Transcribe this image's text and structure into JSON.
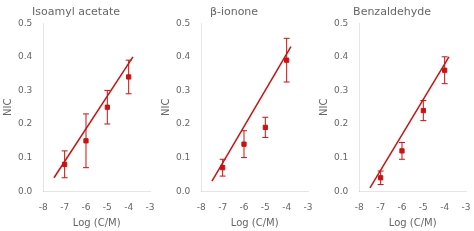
{
  "chart_data": [
    {
      "type": "scatter",
      "title": "Isoamyl acetate",
      "xlabel": "Log (C/M)",
      "ylabel": "NIC",
      "series": [
        {
          "type": "scatter",
          "marker": "square",
          "color": "#cc1111",
          "x": [
            -7,
            -6,
            -5,
            -4
          ],
          "values": [
            0.08,
            0.15,
            0.25,
            0.34
          ],
          "yerr": [
            0.04,
            0.08,
            0.05,
            0.05
          ]
        },
        {
          "type": "line",
          "color": "#cc1111",
          "x": [
            -7.5,
            -3.8
          ],
          "values": [
            0.04,
            0.4
          ]
        }
      ],
      "xlim": [
        -8,
        -3
      ],
      "ylim": [
        0.0,
        0.5
      ],
      "xticks": [
        -8,
        -7,
        -6,
        -5,
        -4,
        -3
      ],
      "yticks": [
        {
          "value": 0.0,
          "label": "0.0"
        },
        0.1,
        0.2,
        0.3,
        0.4,
        0.5
      ],
      "grid": false
    },
    {
      "type": "scatter",
      "title": "β-ionone",
      "xlabel": "Log (C/M)",
      "ylabel": "NIC",
      "series": [
        {
          "type": "scatter",
          "marker": "square",
          "color": "#cc1111",
          "x": [
            -7,
            -6,
            -5,
            -4
          ],
          "values": [
            0.07,
            0.14,
            0.19,
            0.39
          ],
          "yerr": [
            0.025,
            0.04,
            0.03,
            0.065
          ]
        },
        {
          "type": "line",
          "color": "#cc1111",
          "x": [
            -7.5,
            -3.8
          ],
          "values": [
            0.03,
            0.43
          ]
        }
      ],
      "xlim": [
        -8,
        -3
      ],
      "ylim": [
        0.0,
        0.5
      ],
      "xticks": [
        -8,
        -7,
        -6,
        -5,
        -4,
        -3
      ],
      "yticks": [
        {
          "value": 0.0,
          "label": "0.0"
        },
        0.1,
        0.2,
        0.3,
        0.4,
        0.5
      ],
      "grid": false
    },
    {
      "type": "scatter",
      "title": "Benzaldehyde",
      "xlabel": "Log (C/M)",
      "ylabel": "NIC",
      "series": [
        {
          "type": "scatter",
          "marker": "square",
          "color": "#cc1111",
          "x": [
            -7,
            -6,
            -5,
            -4
          ],
          "values": [
            0.04,
            0.12,
            0.24,
            0.36
          ],
          "yerr": [
            0.02,
            0.025,
            0.03,
            0.04
          ]
        },
        {
          "type": "line",
          "color": "#cc1111",
          "x": [
            -7.5,
            -3.8
          ],
          "values": [
            0.01,
            0.4
          ]
        }
      ],
      "xlim": [
        -8,
        -3
      ],
      "ylim": [
        0.0,
        0.5
      ],
      "xticks": [
        -8,
        -7,
        -6,
        -5,
        -4,
        -3
      ],
      "yticks": [
        {
          "value": 0.0,
          "label": "0.0"
        },
        0.1,
        0.2,
        0.3,
        0.4,
        0.5
      ],
      "grid": false
    }
  ]
}
